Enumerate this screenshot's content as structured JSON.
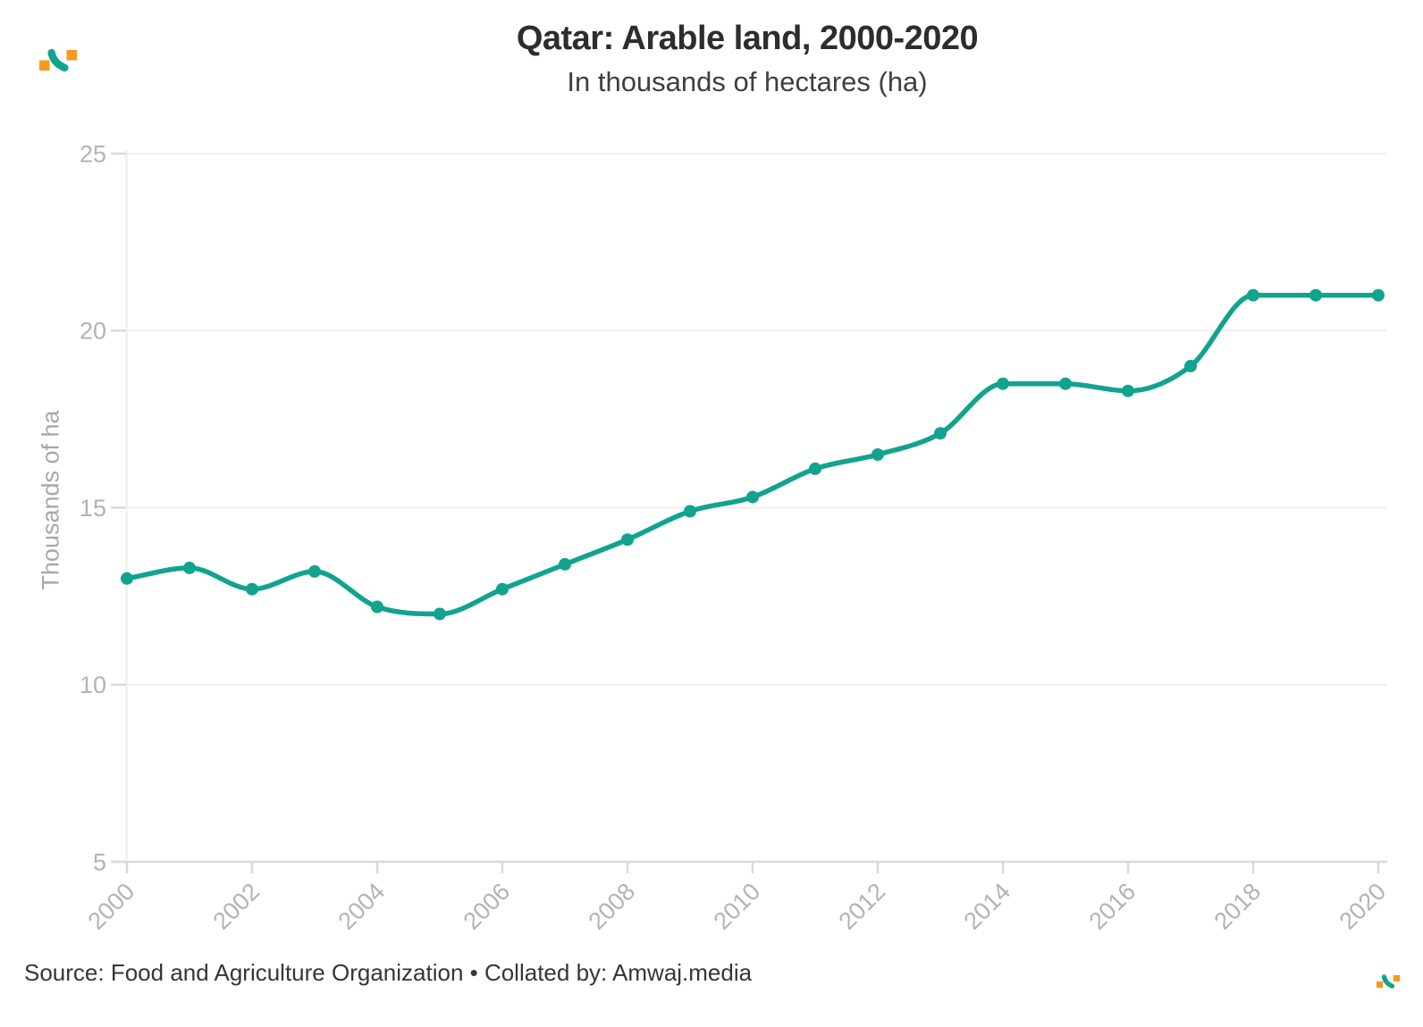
{
  "header": {
    "title": "Qatar: Arable land, 2000-2020",
    "subtitle": "In thousands of hectares (ha)"
  },
  "axes": {
    "y_title": "Thousands of ha"
  },
  "footer": {
    "source": "Source: Food and Agriculture Organization • Collated by: Amwaj.media"
  },
  "branding": {
    "logo": "amwaj-swoosh-logo",
    "orange": "#F8991D",
    "teal": "#12A38F"
  },
  "chart_data": {
    "type": "line",
    "title": "Qatar: Arable land, 2000-2020",
    "subtitle": "In thousands of hectares (ha)",
    "xlabel": "",
    "ylabel": "Thousands of ha",
    "x": [
      2000,
      2001,
      2002,
      2003,
      2004,
      2005,
      2006,
      2007,
      2008,
      2009,
      2010,
      2011,
      2012,
      2013,
      2014,
      2015,
      2016,
      2017,
      2018,
      2019,
      2020
    ],
    "values": [
      13.0,
      13.3,
      12.7,
      13.2,
      12.2,
      12.0,
      12.7,
      13.4,
      14.1,
      14.9,
      15.3,
      16.1,
      16.5,
      17.1,
      18.5,
      18.5,
      18.3,
      19.0,
      21.0,
      21.0,
      21.0
    ],
    "ylim": [
      5,
      25
    ],
    "yticks": [
      5,
      10,
      15,
      20,
      25
    ],
    "xticks": [
      2000,
      2002,
      2004,
      2006,
      2008,
      2010,
      2012,
      2014,
      2016,
      2018,
      2020
    ],
    "grid": "horizontal",
    "legend": "none",
    "line_color": "#12A38F",
    "marker": "circle"
  }
}
